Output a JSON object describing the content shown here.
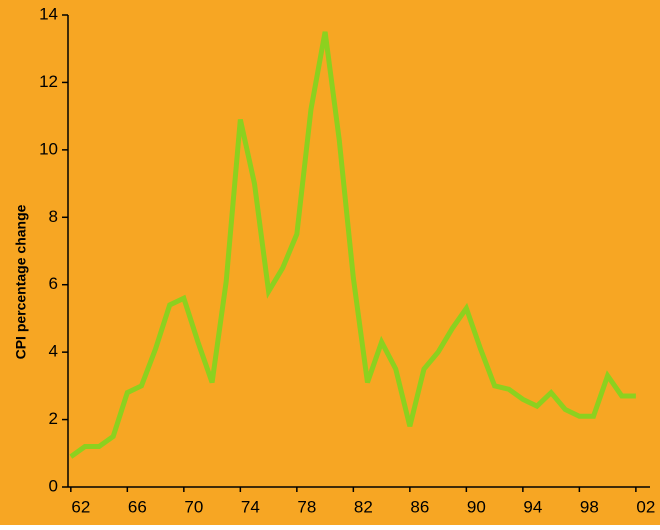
{
  "chart_data": {
    "type": "line",
    "y_label": "CPI percentage change",
    "x": [
      1962,
      1963,
      1964,
      1965,
      1966,
      1967,
      1968,
      1969,
      1970,
      1971,
      1972,
      1973,
      1974,
      1975,
      1976,
      1977,
      1978,
      1979,
      1980,
      1981,
      1982,
      1983,
      1984,
      1985,
      1986,
      1987,
      1988,
      1989,
      1990,
      1991,
      1992,
      1993,
      1994,
      1995,
      1996,
      1997,
      1998,
      1999,
      2000,
      2001,
      2002
    ],
    "series": [
      {
        "color": "#8cd11f",
        "values": [
          0.9,
          1.2,
          1.2,
          1.5,
          2.8,
          3.0,
          4.1,
          5.4,
          5.6,
          4.3,
          3.1,
          6.1,
          10.9,
          9.0,
          5.8,
          6.5,
          7.5,
          11.2,
          13.5,
          10.3,
          6.2,
          3.1,
          4.3,
          3.5,
          1.8,
          3.5,
          4.0,
          4.7,
          5.3,
          4.1,
          3.0,
          2.9,
          2.6,
          2.4,
          2.8,
          2.3,
          2.1,
          2.1,
          3.3,
          2.7,
          2.7
        ]
      }
    ],
    "xlim": [
      1961.8,
      2003.0
    ],
    "xticks": [
      {
        "value": 1962,
        "label": "62"
      },
      {
        "value": 1966,
        "label": "66"
      },
      {
        "value": 1970,
        "label": "70"
      },
      {
        "value": 1974,
        "label": "74"
      },
      {
        "value": 1978,
        "label": "78"
      },
      {
        "value": 1982,
        "label": "82"
      },
      {
        "value": 1986,
        "label": "86"
      },
      {
        "value": 1990,
        "label": "90"
      },
      {
        "value": 1994,
        "label": "94"
      },
      {
        "value": 1998,
        "label": "98"
      },
      {
        "value": 2002,
        "label": "02"
      }
    ],
    "ylim": [
      0,
      14
    ],
    "yticks": [
      0,
      2,
      4,
      6,
      8,
      10,
      12,
      14
    ],
    "background": "#f7a623"
  }
}
